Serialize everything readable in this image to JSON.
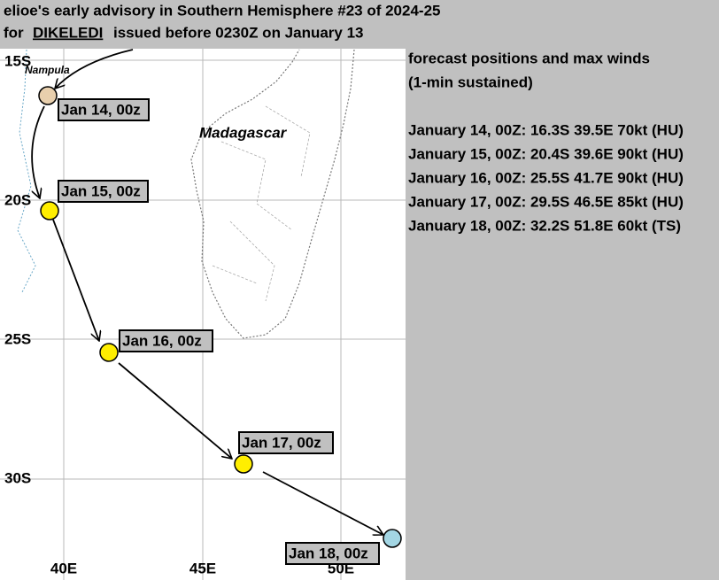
{
  "header": {
    "line1": "elioe's early advisory in Southern Hemisphere #23 of 2024-25",
    "line2_prefix": "for",
    "storm_name": "DIKELEDI",
    "line2_suffix": "issued before 0230Z on January 13"
  },
  "forecast": {
    "heading": [
      "forecast positions and max winds",
      "(1-min sustained)"
    ],
    "entries": [
      "January 14, 00Z: 16.3S 39.5E 70kt (HU)",
      "January 15, 00Z: 20.4S 39.6E 90kt (HU)",
      "January 16, 00Z: 25.5S 41.7E 90kt (HU)",
      "January 17, 00Z: 29.5S 46.5E 85kt (HU)",
      "January 18, 00Z: 32.2S 51.8E 60kt (TS)"
    ]
  },
  "map": {
    "lat_labels": [
      "15S",
      "20S",
      "25S",
      "30S"
    ],
    "lon_labels": [
      "40E",
      "45E",
      "50E"
    ],
    "places": [
      "Nampula",
      "Madagascar"
    ],
    "points": [
      "Jan 14, 00z",
      "Jan 15, 00z",
      "Jan 16, 00z",
      "Jan 17, 00z",
      "Jan 18, 00z"
    ]
  }
}
